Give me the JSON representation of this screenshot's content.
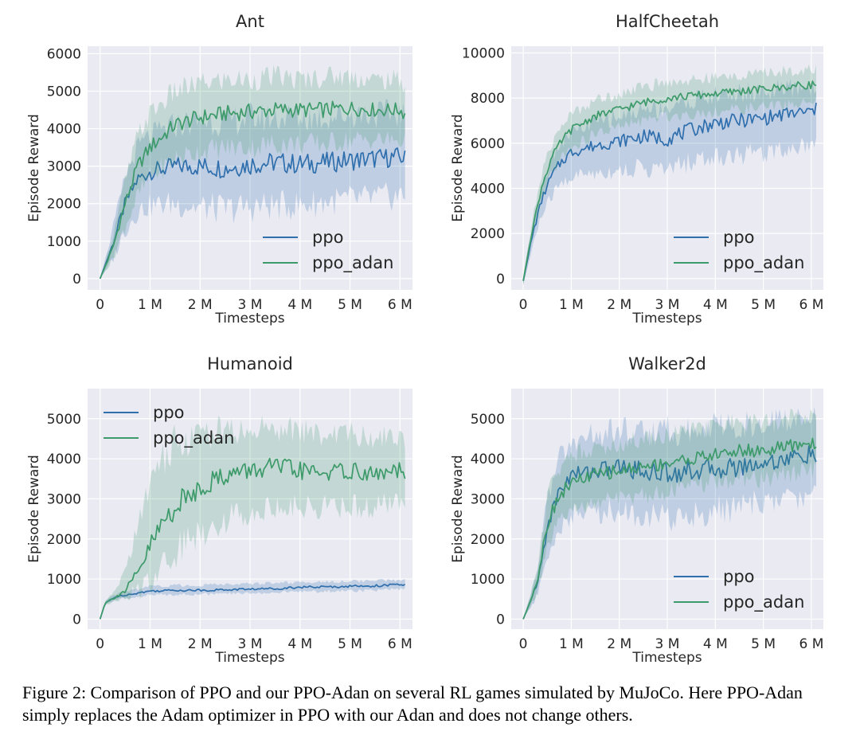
{
  "caption": "Figure 2: Comparison of PPO and our PPO-Adan on several RL games simulated by MuJoCo. Here PPO-Adan simply replaces the Adam optimizer in PPO with our Adan and does not change others.",
  "colors": {
    "ppo": "#2f6fad",
    "ppo_adan": "#3d9a6a",
    "plot_bg": "#eaeaf2",
    "grid": "#ffffff"
  },
  "chart_data": [
    {
      "type": "line",
      "title": "Ant",
      "xlabel": "Timesteps",
      "ylabel": "Episode Reward",
      "xlim": [
        -0.25,
        6.25
      ],
      "ylim": [
        -300,
        6200
      ],
      "xticks": [
        0,
        1,
        2,
        3,
        4,
        5,
        6
      ],
      "xtick_labels": [
        "0",
        "1 M",
        "2 M",
        "3 M",
        "4 M",
        "5 M",
        "6 M"
      ],
      "yticks": [
        0,
        1000,
        2000,
        3000,
        4000,
        5000,
        6000
      ],
      "ytick_labels": [
        "0",
        "1000",
        "2000",
        "3000",
        "4000",
        "5000",
        "6000"
      ],
      "legend_loc": "lower-right",
      "grid": true,
      "series": [
        {
          "name": "ppo",
          "color": "#2f6fad",
          "x": [
            0,
            0.25,
            0.5,
            0.75,
            1,
            1.5,
            2,
            2.5,
            3,
            3.5,
            4,
            4.5,
            5,
            5.5,
            6,
            6.1
          ],
          "y": [
            0,
            900,
            2000,
            2650,
            2850,
            3000,
            3000,
            2950,
            3050,
            3100,
            3050,
            3100,
            3150,
            3200,
            3250,
            3200
          ],
          "lo": [
            0,
            500,
            1300,
            1800,
            1950,
            2000,
            1900,
            1850,
            1900,
            1950,
            1950,
            2050,
            2100,
            2150,
            2200,
            2200
          ],
          "hi": [
            0,
            1300,
            2700,
            3500,
            3800,
            4100,
            4200,
            4200,
            4300,
            4300,
            4300,
            4300,
            4400,
            4400,
            4400,
            4400
          ]
        },
        {
          "name": "ppo_adan",
          "color": "#3d9a6a",
          "x": [
            0,
            0.25,
            0.5,
            0.75,
            1,
            1.5,
            2,
            2.5,
            3,
            3.5,
            4,
            4.5,
            5,
            5.5,
            6,
            6.1
          ],
          "y": [
            0,
            800,
            2000,
            3000,
            3500,
            4100,
            4300,
            4400,
            4450,
            4500,
            4500,
            4500,
            4550,
            4500,
            4500,
            4400
          ],
          "lo": [
            0,
            500,
            1400,
            2200,
            2700,
            3200,
            3400,
            3500,
            3500,
            3600,
            3600,
            3600,
            3700,
            3700,
            3700,
            3600
          ],
          "hi": [
            0,
            1100,
            2600,
            3800,
            4400,
            5000,
            5200,
            5300,
            5300,
            5400,
            5300,
            5400,
            5400,
            5300,
            5300,
            5200
          ]
        }
      ]
    },
    {
      "type": "line",
      "title": "HalfCheetah",
      "xlabel": "Timesteps",
      "ylabel": "Episode Reward",
      "xlim": [
        -0.25,
        6.25
      ],
      "ylim": [
        -500,
        10300
      ],
      "xticks": [
        0,
        1,
        2,
        3,
        4,
        5,
        6
      ],
      "xtick_labels": [
        "0",
        "1 M",
        "2 M",
        "3 M",
        "4 M",
        "5 M",
        "6 M"
      ],
      "yticks": [
        0,
        2000,
        4000,
        6000,
        8000,
        10000
      ],
      "ytick_labels": [
        "0",
        "2000",
        "4000",
        "6000",
        "8000",
        "10000"
      ],
      "legend_loc": "lower-right",
      "grid": true,
      "series": [
        {
          "name": "ppo",
          "color": "#2f6fad",
          "x": [
            0,
            0.2,
            0.4,
            0.6,
            0.8,
            1,
            1.5,
            2,
            2.5,
            3,
            3.5,
            4,
            4.5,
            5,
            5.5,
            6,
            6.1
          ],
          "y": [
            -100,
            2000,
            3600,
            4600,
            5200,
            5600,
            5900,
            6100,
            6300,
            6200,
            6600,
            6900,
            7000,
            7100,
            7300,
            7400,
            7500
          ],
          "lo": [
            -300,
            1500,
            2900,
            3700,
            4200,
            4500,
            4700,
            4800,
            4900,
            4800,
            5200,
            5400,
            5500,
            5600,
            5800,
            6000,
            6000
          ],
          "hi": [
            100,
            2600,
            4200,
            5400,
            6100,
            6500,
            6900,
            7200,
            7500,
            7600,
            7900,
            8100,
            8200,
            8300,
            8400,
            8500,
            8500
          ]
        },
        {
          "name": "ppo_adan",
          "color": "#3d9a6a",
          "x": [
            0,
            0.2,
            0.4,
            0.6,
            0.8,
            1,
            1.5,
            2,
            2.5,
            3,
            3.5,
            4,
            4.5,
            5,
            5.5,
            6,
            6.1
          ],
          "y": [
            -100,
            2300,
            4200,
            5400,
            6100,
            6600,
            7200,
            7500,
            7800,
            8000,
            8100,
            8200,
            8300,
            8400,
            8500,
            8600,
            8600
          ],
          "lo": [
            -300,
            1900,
            3600,
            4700,
            5400,
            5800,
            6400,
            6700,
            7000,
            7200,
            7300,
            7400,
            7500,
            7600,
            7700,
            7800,
            7800
          ],
          "hi": [
            100,
            2700,
            4800,
            6000,
            6800,
            7300,
            7900,
            8200,
            8500,
            8700,
            8800,
            8900,
            9000,
            9100,
            9200,
            9300,
            9300
          ]
        }
      ]
    },
    {
      "type": "line",
      "title": "Humanoid",
      "xlabel": "Timesteps",
      "ylabel": "Episode Reward",
      "xlim": [
        -0.25,
        6.25
      ],
      "ylim": [
        -250,
        5750
      ],
      "xticks": [
        0,
        1,
        2,
        3,
        4,
        5,
        6
      ],
      "xtick_labels": [
        "0",
        "1 M",
        "2 M",
        "3 M",
        "4 M",
        "5 M",
        "6 M"
      ],
      "yticks": [
        0,
        1000,
        2000,
        3000,
        4000,
        5000
      ],
      "ytick_labels": [
        "0",
        "1000",
        "2000",
        "3000",
        "4000",
        "5000"
      ],
      "legend_loc": "upper-left",
      "grid": true,
      "series": [
        {
          "name": "ppo",
          "color": "#2f6fad",
          "x": [
            0,
            0.1,
            0.3,
            0.5,
            1,
            1.5,
            2,
            2.5,
            3,
            3.5,
            4,
            4.5,
            5,
            5.5,
            6,
            6.1
          ],
          "y": [
            0,
            400,
            550,
            600,
            700,
            720,
            720,
            730,
            750,
            760,
            800,
            800,
            820,
            830,
            860,
            850
          ],
          "lo": [
            0,
            350,
            480,
            520,
            600,
            620,
            620,
            630,
            650,
            660,
            690,
            690,
            710,
            720,
            740,
            740
          ],
          "hi": [
            0,
            450,
            620,
            680,
            820,
            840,
            850,
            860,
            880,
            900,
            920,
            930,
            950,
            960,
            980,
            980
          ]
        },
        {
          "name": "ppo_adan",
          "color": "#3d9a6a",
          "x": [
            0,
            0.1,
            0.3,
            0.5,
            0.75,
            1,
            1.25,
            1.5,
            2,
            2.5,
            3,
            3.5,
            4,
            4.5,
            5,
            5.5,
            6,
            6.1
          ],
          "y": [
            0,
            400,
            550,
            700,
            1100,
            1800,
            2400,
            2800,
            3300,
            3600,
            3700,
            3800,
            3700,
            3650,
            3700,
            3600,
            3700,
            3550
          ],
          "lo": [
            0,
            350,
            450,
            500,
            700,
            1000,
            1400,
            1700,
            2200,
            2500,
            2700,
            2800,
            2800,
            2800,
            2800,
            2800,
            2900,
            2900
          ],
          "hi": [
            0,
            450,
            700,
            1200,
            2300,
            3400,
            4000,
            4400,
            4600,
            4700,
            4700,
            4800,
            4700,
            4600,
            4600,
            4500,
            4600,
            4500
          ]
        }
      ]
    },
    {
      "type": "line",
      "title": "Walker2d",
      "xlabel": "Timesteps",
      "ylabel": "Episode Reward",
      "xlim": [
        -0.25,
        6.25
      ],
      "ylim": [
        -250,
        5750
      ],
      "xticks": [
        0,
        1,
        2,
        3,
        4,
        5,
        6
      ],
      "xtick_labels": [
        "0",
        "1 M",
        "2 M",
        "3 M",
        "4 M",
        "5 M",
        "6 M"
      ],
      "yticks": [
        0,
        1000,
        2000,
        3000,
        4000,
        5000
      ],
      "ytick_labels": [
        "0",
        "1000",
        "2000",
        "3000",
        "4000",
        "5000"
      ],
      "legend_loc": "lower-right",
      "grid": true,
      "series": [
        {
          "name": "ppo",
          "color": "#2f6fad",
          "x": [
            0,
            0.1,
            0.3,
            0.5,
            0.75,
            1,
            1.5,
            2,
            2.5,
            3,
            3.5,
            4,
            4.5,
            5,
            5.5,
            6,
            6.1
          ],
          "y": [
            0,
            300,
            900,
            2300,
            3200,
            3600,
            3700,
            3800,
            3700,
            3650,
            3700,
            3750,
            3800,
            3900,
            4000,
            4100,
            4050
          ],
          "lo": [
            0,
            200,
            600,
            1500,
            2300,
            2600,
            2700,
            2700,
            2600,
            2500,
            2600,
            2700,
            2800,
            2900,
            3000,
            3100,
            3100
          ],
          "hi": [
            0,
            400,
            1200,
            3000,
            4000,
            4400,
            4600,
            4700,
            4700,
            4700,
            4700,
            4800,
            4800,
            4900,
            5000,
            5000,
            5000
          ]
        },
        {
          "name": "ppo_adan",
          "color": "#3d9a6a",
          "x": [
            0,
            0.1,
            0.3,
            0.5,
            0.75,
            1,
            1.5,
            2,
            2.5,
            3,
            3.5,
            4,
            4.5,
            5,
            5.5,
            6,
            6.1
          ],
          "y": [
            0,
            300,
            1000,
            2400,
            3100,
            3400,
            3600,
            3700,
            3800,
            3900,
            4000,
            4100,
            4200,
            4200,
            4300,
            4400,
            4350
          ],
          "lo": [
            0,
            200,
            700,
            1700,
            2400,
            2700,
            2900,
            3000,
            3100,
            3200,
            3300,
            3400,
            3500,
            3500,
            3600,
            3700,
            3700
          ],
          "hi": [
            0,
            400,
            1300,
            3100,
            3800,
            4100,
            4300,
            4400,
            4500,
            4600,
            4700,
            4800,
            4900,
            4900,
            5000,
            5100,
            5100
          ]
        }
      ]
    }
  ]
}
